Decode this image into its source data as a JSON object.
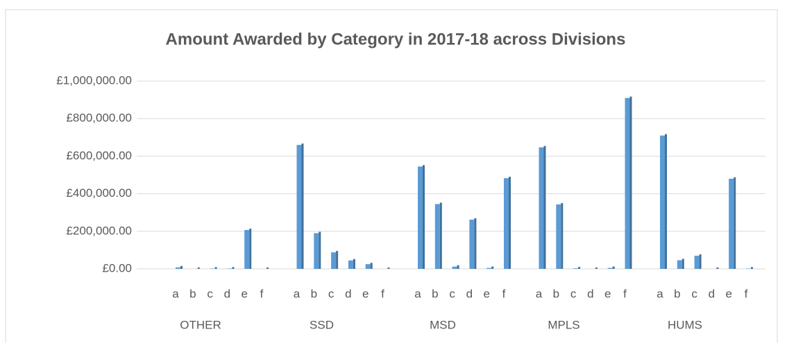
{
  "chart_data": {
    "type": "bar",
    "title": "Amount Awarded by Category in 2017-18 across Divisions",
    "color": "#5b9bd5",
    "groups": [
      {
        "label": "OTHER",
        "categories": [
          "a",
          "b",
          "c",
          "d",
          "e",
          "f"
        ],
        "values": [
          8000,
          0,
          2000,
          2000,
          207000,
          0
        ]
      },
      {
        "label": "SSD",
        "categories": [
          "a",
          "b",
          "c",
          "d",
          "e",
          "f"
        ],
        "values": [
          660000,
          190000,
          88000,
          45000,
          25000,
          0
        ]
      },
      {
        "label": "MSD",
        "categories": [
          "a",
          "b",
          "c",
          "d",
          "e",
          "f"
        ],
        "values": [
          545000,
          345000,
          12000,
          262000,
          5000,
          483000
        ]
      },
      {
        "label": "MPLS",
        "categories": [
          "a",
          "b",
          "c",
          "d",
          "e",
          "f"
        ],
        "values": [
          647000,
          343000,
          3000,
          0,
          5000,
          910000
        ]
      },
      {
        "label": "HUMS",
        "categories": [
          "a",
          "b",
          "c",
          "d",
          "e",
          "f"
        ],
        "values": [
          710000,
          46000,
          70000,
          0,
          480000,
          2000
        ]
      }
    ],
    "ylim": [
      0,
      1000000
    ],
    "yticks": [
      {
        "value": 0,
        "label": "£0.00"
      },
      {
        "value": 200000,
        "label": "£200,000.00"
      },
      {
        "value": 400000,
        "label": "£400,000.00"
      },
      {
        "value": 600000,
        "label": "£600,000.00"
      },
      {
        "value": 800000,
        "label": "£800,000.00"
      },
      {
        "value": 1000000,
        "label": "£1,000,000.00"
      }
    ],
    "grid": true
  }
}
